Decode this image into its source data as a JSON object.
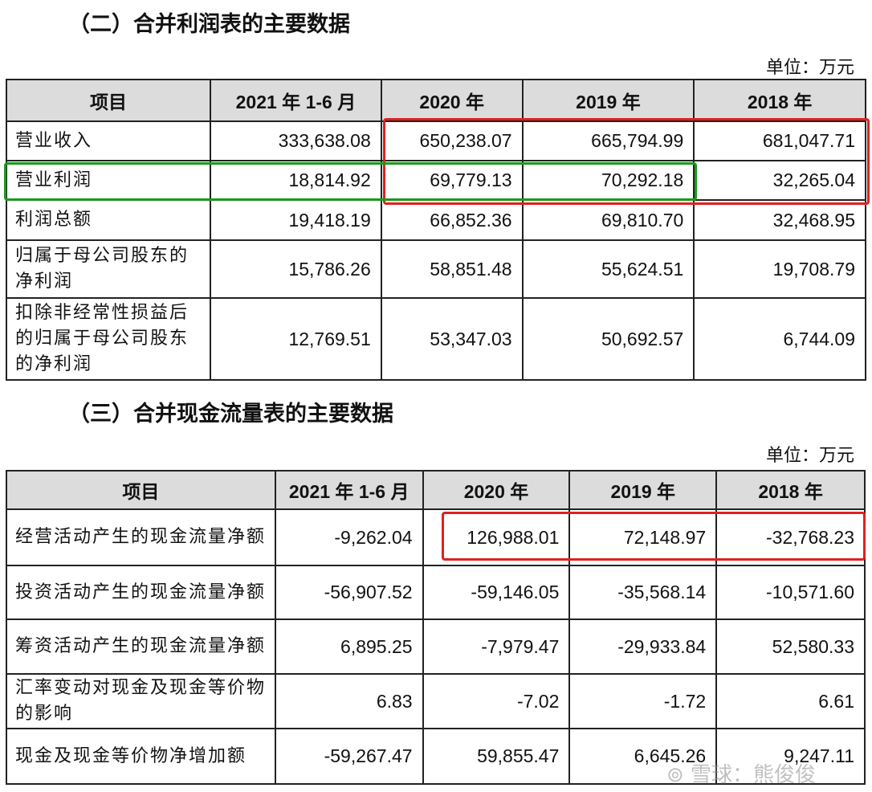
{
  "income": {
    "title": "（二）合并利润表的主要数据",
    "unit": "单位：万元",
    "headers": [
      "项目",
      "2021 年 1-6 月",
      "2020 年",
      "2019 年",
      "2018 年"
    ],
    "rows": [
      [
        "营业收入",
        "333,638.08",
        "650,238.07",
        "665,794.99",
        "681,047.71"
      ],
      [
        "营业利润",
        "18,814.92",
        "69,779.13",
        "70,292.18",
        "32,265.04"
      ],
      [
        "利润总额",
        "19,418.19",
        "66,852.36",
        "69,810.70",
        "32,468.95"
      ],
      [
        "归属于母公司股东的净利润",
        "15,786.26",
        "58,851.48",
        "55,624.51",
        "19,708.79"
      ],
      [
        "扣除非经常性损益后的归属于母公司股东的净利润",
        "12,769.51",
        "53,347.03",
        "50,692.57",
        "6,744.09"
      ]
    ]
  },
  "cashflow": {
    "title": "（三）合并现金流量表的主要数据",
    "unit": "单位：万元",
    "headers": [
      "项目",
      "2021 年 1-6 月",
      "2020 年",
      "2019 年",
      "2018 年"
    ],
    "rows": [
      [
        "经营活动产生的现金流量净额",
        "-9,262.04",
        "126,988.01",
        "72,148.97",
        "-32,768.23"
      ],
      [
        "投资活动产生的现金流量净额",
        "-56,907.52",
        "-59,146.05",
        "-35,568.14",
        "-10,571.60"
      ],
      [
        "筹资活动产生的现金流量净额",
        "6,895.25",
        "-7,979.47",
        "-29,933.84",
        "52,580.33"
      ],
      [
        "汇率变动对现金及现金等价物的影响",
        "6.83",
        "-7.02",
        "-1.72",
        "6.61"
      ],
      [
        "现金及现金等价物净增加额",
        "-59,267.47",
        "59,855.47",
        "6,645.26",
        "9,247.11"
      ]
    ]
  },
  "highlight_colors": {
    "red": "#e02020",
    "green": "#1a9a1a"
  },
  "watermark": "@雪球：熊俊俊"
}
